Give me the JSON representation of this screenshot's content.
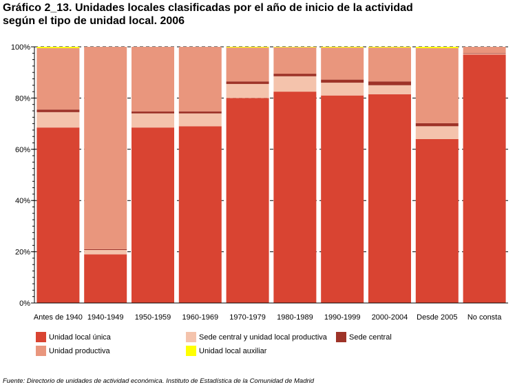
{
  "title_line1": "Gráfico 2_13. Unidades locales clasificadas por el año de inicio de la actividad",
  "title_line2": "según el tipo de unidad local. 2006",
  "source": "Fuente: Directorio de unidades de actividad económica. Instituto de Estadística de la Comunidad de Madrid",
  "chart_data": {
    "type": "bar",
    "stacked": true,
    "percent_stacked": true,
    "categories": [
      "Antes de 1940",
      "1940-1949",
      "1950-1959",
      "1960-1969",
      "1970-1979",
      "1980-1989",
      "1990-1999",
      "2000-2004",
      "Desde 2005",
      "No consta"
    ],
    "yticks": [
      "0%",
      "20%",
      "40%",
      "60%",
      "80%",
      "100%"
    ],
    "ylim": [
      0,
      100
    ],
    "grid": true,
    "legend_position": "bottom",
    "series": [
      {
        "name": "Unidad local única",
        "color": "#d94432",
        "values": [
          68.5,
          19.0,
          68.5,
          69.0,
          80.0,
          82.5,
          81.0,
          81.5,
          64.0,
          97.0
        ]
      },
      {
        "name": "Sede central y unidad local productiva",
        "color": "#f4c3ac",
        "values": [
          6.0,
          1.7,
          5.5,
          5.0,
          5.5,
          6.0,
          5.0,
          3.5,
          5.0,
          0.3
        ]
      },
      {
        "name": "Sede central",
        "color": "#9e3328",
        "values": [
          1.0,
          0.3,
          0.8,
          0.8,
          1.0,
          1.0,
          1.2,
          1.5,
          1.2,
          0.2
        ]
      },
      {
        "name": "Unidad productiva",
        "color": "#e9967d",
        "values": [
          24.0,
          79.0,
          25.2,
          25.2,
          13.2,
          10.3,
          12.5,
          13.2,
          29.3,
          2.5
        ]
      },
      {
        "name": "Unidad local auxiliar",
        "color": "#ffff00",
        "values": [
          0.5,
          0.0,
          0.0,
          0.0,
          0.3,
          0.2,
          0.3,
          0.3,
          0.5,
          0.0
        ]
      }
    ],
    "legend": [
      {
        "label": "Unidad local única",
        "color": "#d94432"
      },
      {
        "label": "Sede central y unidad local productiva",
        "color": "#f4c3ac"
      },
      {
        "label": "Sede central",
        "color": "#9e3328"
      },
      {
        "label": "Unidad productiva",
        "color": "#e9967d"
      },
      {
        "label": "Unidad local auxiliar",
        "color": "#ffff00"
      }
    ]
  }
}
